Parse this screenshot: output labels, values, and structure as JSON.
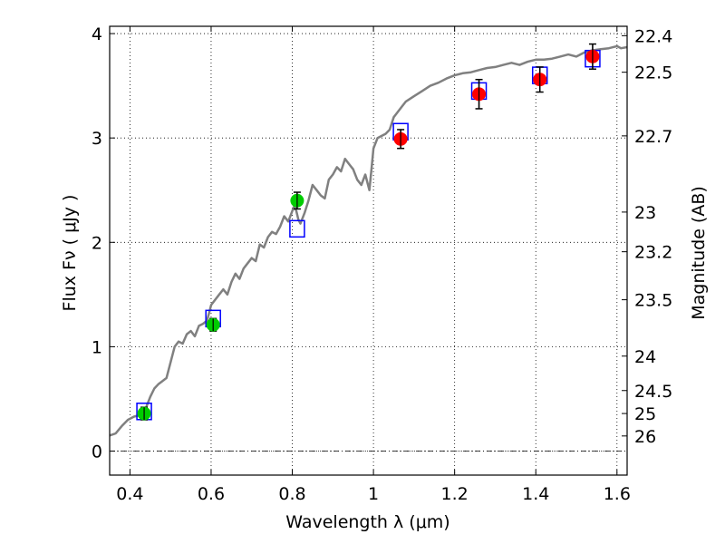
{
  "chart_data": {
    "type": "scatter",
    "xlabel": "Wavelength  λ (μm)",
    "ylabel": "Flux  Fν  ( μJy )",
    "y2label": "Magnitude (AB)",
    "xlim": [
      0.35,
      1.625
    ],
    "ylim": [
      -0.23,
      4.07
    ],
    "grid": true,
    "x_ticks": [
      0.4,
      0.6,
      0.8,
      1.0,
      1.2,
      1.4,
      1.6
    ],
    "x_tick_labels": [
      "0.4",
      "0.6",
      "0.8",
      "1",
      "1.2",
      "1.4",
      "1.6"
    ],
    "y_ticks": [
      0,
      1,
      2,
      3,
      4
    ],
    "y_tick_labels": [
      "0",
      "1",
      "2",
      "3",
      "4"
    ],
    "y2_ticks": [
      {
        "label": "22.4",
        "flux": 3.98
      },
      {
        "label": "22.5",
        "flux": 3.63
      },
      {
        "label": "22.7",
        "flux": 3.02
      },
      {
        "label": "23",
        "flux": 2.29
      },
      {
        "label": "23.2",
        "flux": 1.91
      },
      {
        "label": "23.5",
        "flux": 1.45
      },
      {
        "label": "24",
        "flux": 0.91
      },
      {
        "label": "24.5",
        "flux": 0.58
      },
      {
        "label": "25",
        "flux": 0.36
      },
      {
        "label": "26",
        "flux": 0.145
      }
    ],
    "zero_line_flux": 0,
    "series": [
      {
        "kind": "line",
        "color": "#808080",
        "x": [
          0.35,
          0.365,
          0.38,
          0.395,
          0.41,
          0.42,
          0.43,
          0.44,
          0.45,
          0.46,
          0.47,
          0.48,
          0.49,
          0.5,
          0.51,
          0.52,
          0.53,
          0.54,
          0.55,
          0.56,
          0.57,
          0.58,
          0.59,
          0.6,
          0.61,
          0.62,
          0.63,
          0.64,
          0.65,
          0.66,
          0.67,
          0.68,
          0.69,
          0.7,
          0.71,
          0.72,
          0.73,
          0.74,
          0.75,
          0.76,
          0.77,
          0.78,
          0.79,
          0.8,
          0.805,
          0.81,
          0.815,
          0.82,
          0.83,
          0.84,
          0.85,
          0.86,
          0.87,
          0.88,
          0.89,
          0.9,
          0.91,
          0.92,
          0.93,
          0.94,
          0.95,
          0.96,
          0.97,
          0.98,
          0.99,
          0.995,
          1.0,
          1.01,
          1.02,
          1.03,
          1.04,
          1.05,
          1.06,
          1.07,
          1.08,
          1.1,
          1.12,
          1.14,
          1.16,
          1.18,
          1.2,
          1.22,
          1.24,
          1.26,
          1.28,
          1.3,
          1.32,
          1.34,
          1.36,
          1.38,
          1.4,
          1.42,
          1.44,
          1.46,
          1.48,
          1.5,
          1.52,
          1.54,
          1.56,
          1.58,
          1.6,
          1.61,
          1.625
        ],
        "y": [
          0.15,
          0.17,
          0.24,
          0.3,
          0.33,
          0.34,
          0.36,
          0.42,
          0.52,
          0.6,
          0.64,
          0.67,
          0.7,
          0.85,
          1.0,
          1.05,
          1.03,
          1.12,
          1.15,
          1.1,
          1.2,
          1.22,
          1.25,
          1.4,
          1.45,
          1.5,
          1.55,
          1.5,
          1.62,
          1.7,
          1.65,
          1.75,
          1.8,
          1.85,
          1.82,
          1.98,
          1.95,
          2.05,
          2.1,
          2.08,
          2.15,
          2.25,
          2.2,
          2.3,
          2.35,
          2.3,
          2.22,
          2.18,
          2.28,
          2.4,
          2.55,
          2.5,
          2.45,
          2.42,
          2.6,
          2.65,
          2.72,
          2.68,
          2.8,
          2.75,
          2.7,
          2.6,
          2.55,
          2.65,
          2.5,
          2.7,
          2.9,
          3.0,
          3.02,
          3.04,
          3.08,
          3.2,
          3.25,
          3.3,
          3.35,
          3.4,
          3.45,
          3.5,
          3.53,
          3.57,
          3.6,
          3.62,
          3.63,
          3.65,
          3.67,
          3.68,
          3.7,
          3.72,
          3.7,
          3.73,
          3.75,
          3.75,
          3.76,
          3.78,
          3.8,
          3.78,
          3.82,
          3.84,
          3.85,
          3.86,
          3.88,
          3.86,
          3.87
        ]
      },
      {
        "kind": "box",
        "color": "#0000ff",
        "x": [
          0.435,
          0.605,
          0.812,
          1.067,
          1.26,
          1.41,
          1.54
        ],
        "y": [
          0.38,
          1.27,
          2.13,
          3.06,
          3.45,
          3.6,
          3.76
        ]
      },
      {
        "kind": "point",
        "color": "#00cc00",
        "x": [
          0.435,
          0.605,
          0.812
        ],
        "y": [
          0.36,
          1.21,
          2.4
        ],
        "err": [
          0.06,
          0.06,
          0.08
        ]
      },
      {
        "kind": "point",
        "color": "#ff0000",
        "x": [
          1.067,
          1.26,
          1.41,
          1.54
        ],
        "y": [
          2.99,
          3.42,
          3.56,
          3.78
        ],
        "err": [
          0.09,
          0.14,
          0.12,
          0.12
        ]
      }
    ]
  }
}
